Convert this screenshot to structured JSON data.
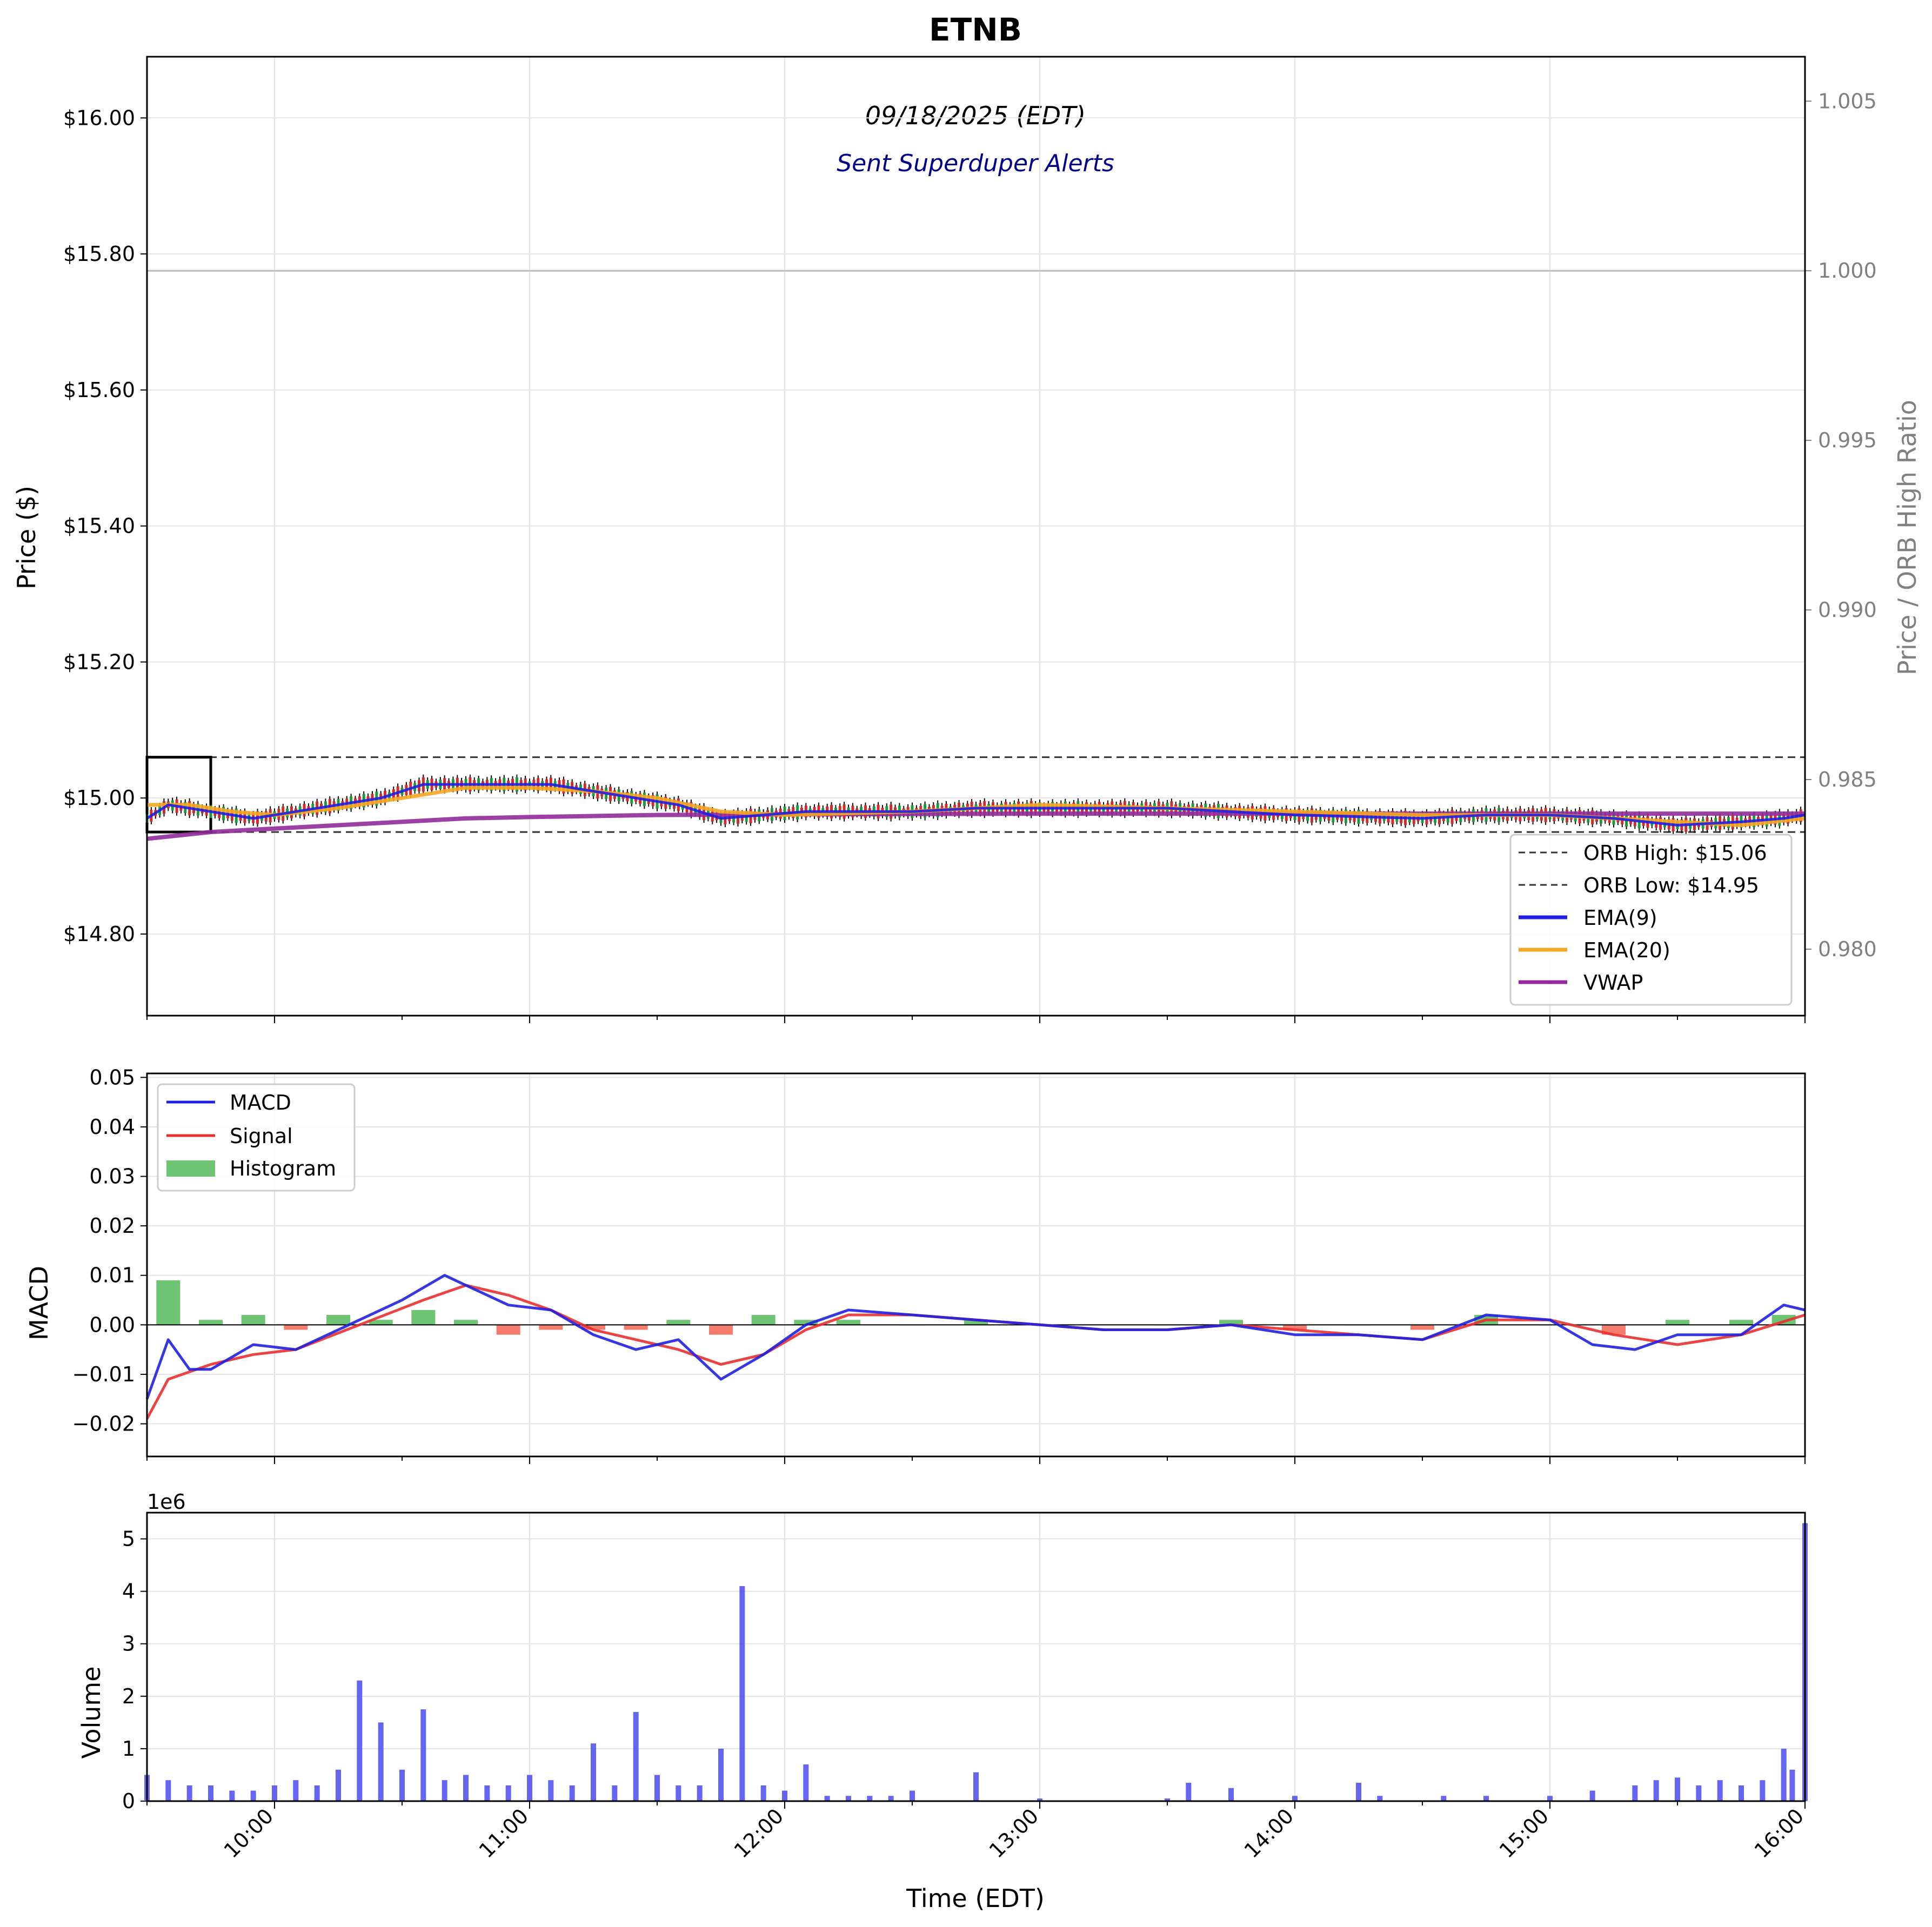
{
  "chart_data": [
    {
      "panel": "price",
      "type": "line",
      "title": "ETNB",
      "subtitle": "09/18/2025 (EDT)",
      "annotation": "Sent Superduper Alerts",
      "ylabel": "Price ($)",
      "ylabel_right": "Price / ORB High Ratio",
      "xlabel": "Time (EDT)",
      "ylim": [
        14.68,
        16.09
      ],
      "ylim_right": [
        0.97804,
        1.00631
      ],
      "x_range": [
        "09:30",
        "16:00"
      ],
      "yticks": [
        "$14.80",
        "$15.00",
        "$15.20",
        "$15.40",
        "$15.60",
        "$15.80",
        "$16.00"
      ],
      "yticks_right": [
        "0.980",
        "0.985",
        "0.990",
        "0.995",
        "1.000",
        "1.005"
      ],
      "grid": true,
      "legend_position": "bottom-right",
      "orb_high": 15.06,
      "orb_low": 14.95,
      "ratio_reference": 1.0,
      "series": [
        {
          "name": "EMA(9)",
          "color": "#2020e0",
          "points": [
            [
              "09:30",
              14.97
            ],
            [
              "09:35",
              14.99
            ],
            [
              "09:45",
              14.98
            ],
            [
              "09:55",
              14.97
            ],
            [
              "10:05",
              14.98
            ],
            [
              "10:15",
              14.99
            ],
            [
              "10:25",
              15.0
            ],
            [
              "10:30",
              15.01
            ],
            [
              "10:35",
              15.02
            ],
            [
              "10:45",
              15.02
            ],
            [
              "10:55",
              15.02
            ],
            [
              "11:05",
              15.02
            ],
            [
              "11:15",
              15.01
            ],
            [
              "11:25",
              15.0
            ],
            [
              "11:35",
              14.99
            ],
            [
              "11:45",
              14.97
            ],
            [
              "11:55",
              14.975
            ],
            [
              "12:05",
              14.98
            ],
            [
              "12:30",
              14.98
            ],
            [
              "12:45",
              14.985
            ],
            [
              "13:00",
              14.985
            ],
            [
              "13:30",
              14.985
            ],
            [
              "14:00",
              14.975
            ],
            [
              "14:30",
              14.97
            ],
            [
              "14:45",
              14.975
            ],
            [
              "15:00",
              14.975
            ],
            [
              "15:15",
              14.97
            ],
            [
              "15:30",
              14.96
            ],
            [
              "15:45",
              14.965
            ],
            [
              "15:55",
              14.97
            ],
            [
              "16:00",
              14.975
            ]
          ]
        },
        {
          "name": "EMA(20)",
          "color": "#f5a623",
          "points": [
            [
              "09:30",
              14.99
            ],
            [
              "09:40",
              14.99
            ],
            [
              "09:50",
              14.98
            ],
            [
              "10:00",
              14.975
            ],
            [
              "10:15",
              14.985
            ],
            [
              "10:30",
              15.0
            ],
            [
              "10:45",
              15.015
            ],
            [
              "11:00",
              15.015
            ],
            [
              "11:15",
              15.01
            ],
            [
              "11:30",
              15.0
            ],
            [
              "11:45",
              14.98
            ],
            [
              "12:00",
              14.975
            ],
            [
              "12:30",
              14.98
            ],
            [
              "12:45",
              14.985
            ],
            [
              "13:00",
              14.99
            ],
            [
              "13:30",
              14.985
            ],
            [
              "14:00",
              14.98
            ],
            [
              "14:30",
              14.975
            ],
            [
              "15:00",
              14.975
            ],
            [
              "15:15",
              14.97
            ],
            [
              "15:30",
              14.965
            ],
            [
              "15:45",
              14.96
            ],
            [
              "16:00",
              14.97
            ]
          ]
        },
        {
          "name": "VWAP",
          "color": "#922b9c",
          "points": [
            [
              "09:30",
              14.94
            ],
            [
              "09:45",
              14.95
            ],
            [
              "10:00",
              14.955
            ],
            [
              "10:15",
              14.96
            ],
            [
              "10:30",
              14.965
            ],
            [
              "10:45",
              14.97
            ],
            [
              "11:00",
              14.972
            ],
            [
              "11:30",
              14.975
            ],
            [
              "12:00",
              14.976
            ],
            [
              "13:00",
              14.977
            ],
            [
              "14:00",
              14.977
            ],
            [
              "15:00",
              14.977
            ],
            [
              "16:00",
              14.977
            ]
          ]
        }
      ]
    },
    {
      "panel": "macd",
      "type": "line",
      "ylabel": "MACD",
      "ylim": [
        -0.0266,
        0.0508
      ],
      "yticks": [
        "−0.02",
        "−0.01",
        "0.00",
        "0.01",
        "0.02",
        "0.03",
        "0.04",
        "0.05"
      ],
      "legend_position": "top-left",
      "grid": true,
      "series": [
        {
          "name": "MACD",
          "color": "#2020e0",
          "points": [
            [
              "09:30",
              -0.015
            ],
            [
              "09:35",
              -0.003
            ],
            [
              "09:40",
              -0.009
            ],
            [
              "09:45",
              -0.009
            ],
            [
              "09:55",
              -0.004
            ],
            [
              "10:05",
              -0.005
            ],
            [
              "10:15",
              -0.001
            ],
            [
              "10:30",
              0.005
            ],
            [
              "10:40",
              0.01
            ],
            [
              "10:45",
              0.008
            ],
            [
              "10:55",
              0.004
            ],
            [
              "11:05",
              0.003
            ],
            [
              "11:15",
              -0.002
            ],
            [
              "11:25",
              -0.005
            ],
            [
              "11:35",
              -0.003
            ],
            [
              "11:45",
              -0.011
            ],
            [
              "11:55",
              -0.006
            ],
            [
              "12:05",
              0.0
            ],
            [
              "12:15",
              0.003
            ],
            [
              "12:30",
              0.002
            ],
            [
              "12:45",
              0.001
            ],
            [
              "13:00",
              0.0
            ],
            [
              "13:15",
              -0.001
            ],
            [
              "13:30",
              -0.001
            ],
            [
              "13:45",
              0.0
            ],
            [
              "14:00",
              -0.002
            ],
            [
              "14:15",
              -0.002
            ],
            [
              "14:30",
              -0.003
            ],
            [
              "14:45",
              0.002
            ],
            [
              "15:00",
              0.001
            ],
            [
              "15:10",
              -0.004
            ],
            [
              "15:20",
              -0.005
            ],
            [
              "15:30",
              -0.002
            ],
            [
              "15:45",
              -0.002
            ],
            [
              "15:55",
              0.004
            ],
            [
              "16:00",
              0.003
            ]
          ]
        },
        {
          "name": "Signal",
          "color": "#e83030",
          "points": [
            [
              "09:30",
              -0.019
            ],
            [
              "09:35",
              -0.011
            ],
            [
              "09:45",
              -0.008
            ],
            [
              "09:55",
              -0.006
            ],
            [
              "10:05",
              -0.005
            ],
            [
              "10:20",
              0.0
            ],
            [
              "10:35",
              0.005
            ],
            [
              "10:45",
              0.008
            ],
            [
              "10:55",
              0.006
            ],
            [
              "11:05",
              0.003
            ],
            [
              "11:15",
              -0.001
            ],
            [
              "11:25",
              -0.003
            ],
            [
              "11:35",
              -0.005
            ],
            [
              "11:45",
              -0.008
            ],
            [
              "11:55",
              -0.006
            ],
            [
              "12:05",
              -0.001
            ],
            [
              "12:15",
              0.002
            ],
            [
              "12:30",
              0.002
            ],
            [
              "12:45",
              0.001
            ],
            [
              "13:00",
              0.0
            ],
            [
              "13:15",
              -0.001
            ],
            [
              "13:30",
              -0.001
            ],
            [
              "13:45",
              0.0
            ],
            [
              "14:00",
              -0.001
            ],
            [
              "14:15",
              -0.002
            ],
            [
              "14:30",
              -0.003
            ],
            [
              "14:45",
              0.001
            ],
            [
              "15:00",
              0.001
            ],
            [
              "15:15",
              -0.002
            ],
            [
              "15:30",
              -0.004
            ],
            [
              "15:45",
              -0.002
            ],
            [
              "16:00",
              0.002
            ]
          ]
        },
        {
          "name": "Histogram",
          "color": "#3cb043",
          "negative_color": "#f0503c",
          "points": [
            [
              "09:35",
              0.009
            ],
            [
              "09:45",
              0.001
            ],
            [
              "09:55",
              0.002
            ],
            [
              "10:05",
              -0.001
            ],
            [
              "10:15",
              0.002
            ],
            [
              "10:25",
              0.001
            ],
            [
              "10:35",
              0.003
            ],
            [
              "10:45",
              0.001
            ],
            [
              "10:55",
              -0.002
            ],
            [
              "11:05",
              -0.001
            ],
            [
              "11:15",
              -0.001
            ],
            [
              "11:25",
              -0.001
            ],
            [
              "11:35",
              0.001
            ],
            [
              "11:45",
              -0.002
            ],
            [
              "11:55",
              0.002
            ],
            [
              "12:05",
              0.001
            ],
            [
              "12:15",
              0.001
            ],
            [
              "12:30",
              0.0
            ],
            [
              "12:45",
              0.001
            ],
            [
              "13:00",
              0.0
            ],
            [
              "13:30",
              0.0
            ],
            [
              "13:45",
              0.001
            ],
            [
              "14:00",
              -0.001
            ],
            [
              "14:15",
              0.0
            ],
            [
              "14:30",
              -0.001
            ],
            [
              "14:45",
              0.002
            ],
            [
              "15:00",
              0.0
            ],
            [
              "15:15",
              -0.002
            ],
            [
              "15:30",
              0.001
            ],
            [
              "15:45",
              0.001
            ],
            [
              "15:55",
              0.002
            ]
          ]
        }
      ]
    },
    {
      "panel": "volume",
      "type": "bar",
      "ylabel": "Volume",
      "scale_label": "1e6",
      "ylim": [
        0,
        5.5
      ],
      "yticks": [
        "0",
        "1",
        "2",
        "3",
        "4",
        "5"
      ],
      "color": "#4a4af0",
      "grid": true,
      "x": [
        "09:30",
        "09:35",
        "09:40",
        "09:45",
        "09:50",
        "09:55",
        "10:00",
        "10:05",
        "10:10",
        "10:15",
        "10:20",
        "10:25",
        "10:30",
        "10:35",
        "10:40",
        "10:45",
        "10:50",
        "10:55",
        "11:00",
        "11:05",
        "11:10",
        "11:15",
        "11:20",
        "11:25",
        "11:30",
        "11:35",
        "11:40",
        "11:45",
        "11:50",
        "11:55",
        "12:00",
        "12:05",
        "12:10",
        "12:15",
        "12:20",
        "12:25",
        "12:30",
        "12:45",
        "13:00",
        "13:30",
        "13:35",
        "13:45",
        "14:00",
        "14:15",
        "14:20",
        "14:35",
        "14:45",
        "15:00",
        "15:10",
        "15:20",
        "15:25",
        "15:30",
        "15:35",
        "15:40",
        "15:45",
        "15:50",
        "15:55",
        "15:57",
        "16:00"
      ],
      "values": [
        0.5,
        0.4,
        0.3,
        0.3,
        0.2,
        0.2,
        0.3,
        0.4,
        0.3,
        0.6,
        2.3,
        1.5,
        0.6,
        1.75,
        0.4,
        0.5,
        0.3,
        0.3,
        0.5,
        0.4,
        0.3,
        1.1,
        0.3,
        1.7,
        0.5,
        0.3,
        0.3,
        1.0,
        4.1,
        0.3,
        0.2,
        0.7,
        0.1,
        0.1,
        0.1,
        0.1,
        0.2,
        0.55,
        0.05,
        0.05,
        0.35,
        0.25,
        0.1,
        0.35,
        0.1,
        0.1,
        0.1,
        0.1,
        0.2,
        0.3,
        0.4,
        0.45,
        0.3,
        0.4,
        0.3,
        0.4,
        1.0,
        0.6,
        5.3
      ]
    }
  ]
}
